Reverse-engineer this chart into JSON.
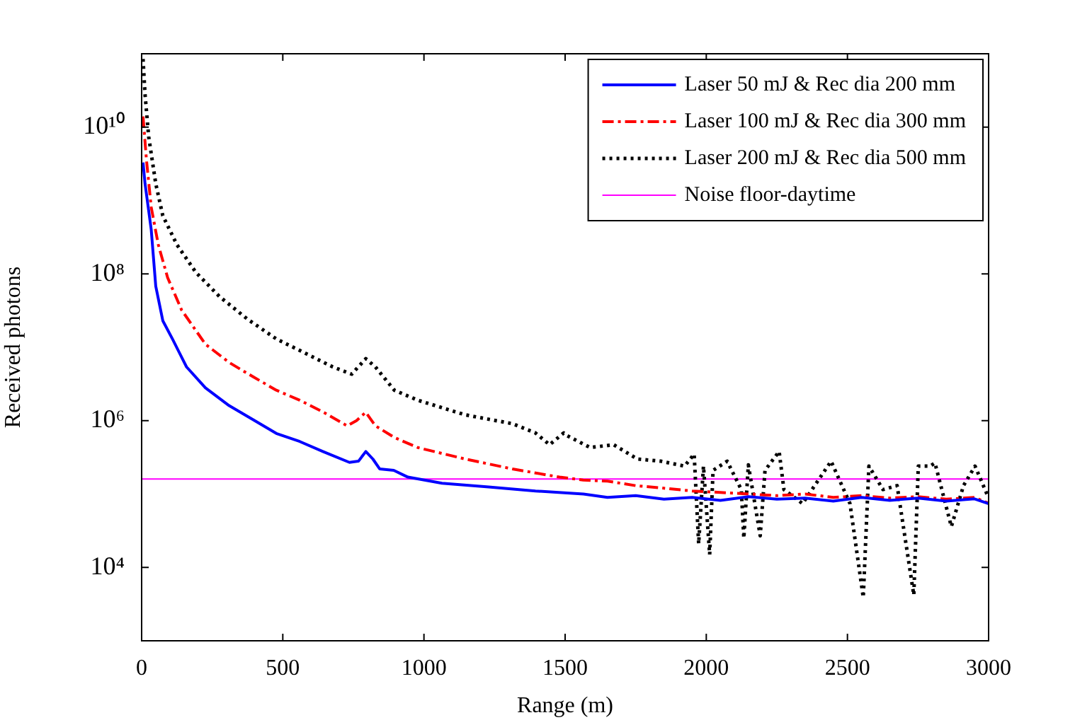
{
  "chart_data": {
    "type": "line",
    "xlabel": "Range (m)",
    "ylabel": "Received photons",
    "log": "y",
    "xlim": [
      0,
      3000
    ],
    "xticks": [
      0,
      500,
      1000,
      1500,
      2000,
      2500,
      3000
    ],
    "ylim": [
      1000,
      100000000000
    ],
    "yticks": [
      {
        "value": 10000,
        "label": "10⁴"
      },
      {
        "value": 1000000,
        "label": "10⁶"
      },
      {
        "value": 100000000,
        "label": "10⁸"
      },
      {
        "value": 10000000000,
        "label": "10¹⁰"
      }
    ],
    "grid": false,
    "legend": "top right",
    "marker": "none",
    "series": [
      {
        "name": "Laser 50 mJ & Rec dia 200 mm",
        "color": "#0000ff",
        "line_style": "solid",
        "x": [
          5,
          12,
          34,
          50,
          75,
          109,
          159,
          226,
          310,
          391,
          477,
          560,
          642,
          736,
          768,
          794,
          819,
          843,
          893,
          943,
          1064,
          1229,
          1395,
          1565,
          1650,
          1750,
          1850,
          1950,
          2050,
          2150,
          2250,
          2350,
          2450,
          2550,
          2650,
          2750,
          2850,
          2950,
          3000
        ],
        "values": [
          3300000000,
          1700000000,
          400000000,
          68000000,
          23000000,
          13000000,
          5400000,
          2800000,
          1600000,
          1050000,
          670000,
          520000,
          380000,
          270000,
          280000,
          380000,
          300000,
          220000,
          210000,
          170000,
          140000,
          125000,
          110000,
          100000,
          90000,
          95000,
          85000,
          90000,
          82000,
          92000,
          85000,
          88000,
          80000,
          90000,
          82000,
          88000,
          80000,
          86000,
          74000
        ]
      },
      {
        "name": "Laser 100 mJ & Rec dia 300 mm",
        "color": "#ff0000",
        "line_style": "dashdot",
        "x": [
          5,
          17,
          34,
          59,
          92,
          142,
          226,
          310,
          393,
          477,
          560,
          644,
          728,
          761,
          794,
          828,
          895,
          978,
          1146,
          1313,
          1480,
          1564,
          1650,
          1750,
          1850,
          1950,
          2050,
          2150,
          2250,
          2350,
          2450,
          2550,
          2650,
          2750,
          2850,
          2950,
          3000
        ],
        "values": [
          14000000000,
          3600000000,
          810000000,
          250000000,
          89000000,
          32000000,
          11000000,
          6200000,
          4000000,
          2600000,
          1900000,
          1300000,
          850000,
          1000000,
          1300000,
          850000,
          590000,
          430000,
          300000,
          220000,
          170000,
          155000,
          150000,
          130000,
          120000,
          110000,
          105000,
          100000,
          95000,
          100000,
          90000,
          95000,
          88000,
          92000,
          85000,
          90000,
          75000
        ]
      },
      {
        "name": "Laser 200 mJ & Rec dia 500 mm",
        "color": "#000000",
        "line_style": "dotted",
        "x": [
          5,
          12,
          25,
          50,
          75,
          125,
          192,
          276,
          376,
          477,
          577,
          677,
          744,
          794,
          828,
          895,
          978,
          1146,
          1313,
          1395,
          1445,
          1495,
          1505,
          1589,
          1672,
          1756,
          1840,
          1923,
          1957,
          1973,
          1990,
          2012,
          2024,
          2074,
          2124,
          2133,
          2149,
          2191,
          2208,
          2258,
          2275,
          2341,
          2442,
          2509,
          2556,
          2576,
          2626,
          2676,
          2735,
          2751,
          2793,
          2810,
          2868,
          2911,
          2952,
          2994
        ],
        "values": [
          85000000000,
          28000000000,
          7400000000,
          1700000000,
          620000000,
          250000000,
          105000000,
          49000000,
          24000000,
          13000000,
          8400000,
          5400000,
          4300000,
          7000000,
          5400000,
          2600000,
          1900000,
          1200000,
          910000,
          680000,
          470000,
          680000,
          630000,
          430000,
          470000,
          300000,
          280000,
          240000,
          350000,
          21000,
          240000,
          15000,
          210000,
          280000,
          115000,
          25000,
          250000,
          27000,
          210000,
          380000,
          115000,
          74000,
          280000,
          74000,
          3900,
          240000,
          115000,
          130000,
          4200,
          240000,
          240000,
          265000,
          36000,
          130000,
          240000,
          100000
        ]
      },
      {
        "name": "Noise floor-daytime",
        "color": "#ff00ff",
        "line_style": "solid",
        "x": [
          0,
          3000
        ],
        "values": [
          160000,
          160000
        ]
      }
    ]
  }
}
